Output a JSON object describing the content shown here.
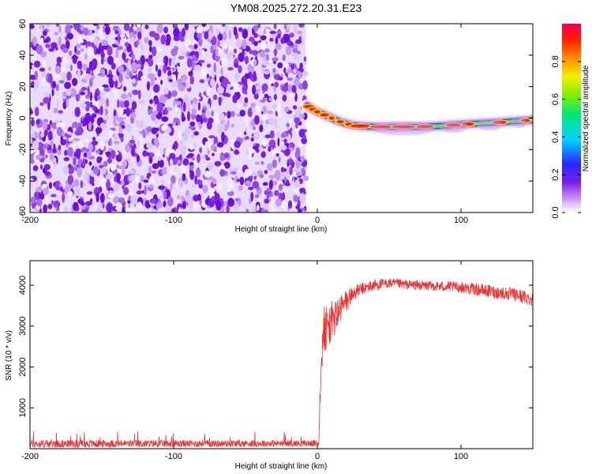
{
  "title": "YM08.2025.272.20.31.E23",
  "chart_data": [
    {
      "type": "heatmap",
      "xlabel": "Height of straight line (km)",
      "ylabel": "Frequency (Hz)",
      "xlim": [
        -200,
        150
      ],
      "ylim": [
        -60,
        60
      ],
      "x_ticks": [
        "-200",
        "-100",
        "0",
        "100"
      ],
      "y_ticks": [
        "60",
        "40",
        "20",
        "0",
        "-20",
        "-40",
        "-60"
      ],
      "ridge": {
        "x": [
          -7,
          -4,
          0,
          5,
          10,
          15,
          20,
          25,
          30,
          40,
          50,
          60,
          70,
          80,
          90,
          100,
          110,
          120,
          130,
          140,
          150
        ],
        "freq": [
          8,
          6,
          4,
          2,
          0,
          -2,
          -3.5,
          -4.5,
          -5,
          -5.5,
          -5.5,
          -5.5,
          -5.5,
          -5.2,
          -4.8,
          -4,
          -3.5,
          -3,
          -2.5,
          -1.8,
          -1.2
        ]
      },
      "noise_region": [
        -200,
        -8
      ],
      "colorbar": {
        "label": "Normalized spectral amplitude",
        "range": [
          0,
          1
        ],
        "ticks": [
          "0.0",
          "0.2",
          "0.4",
          "0.6",
          "0.8"
        ]
      }
    },
    {
      "type": "line",
      "xlabel": "Height of straight line (km)",
      "ylabel": "SNR (10 * v/v)",
      "xlim": [
        -200,
        150
      ],
      "ylim": [
        0,
        4600
      ],
      "x_ticks": [
        "-200",
        "-100",
        "0",
        "100"
      ],
      "y_ticks": [
        "4000",
        "3000",
        "2000",
        "1000"
      ],
      "series": [
        {
          "color": "#ee3333",
          "envelope_x": [
            -200,
            1,
            2,
            3,
            5,
            10,
            15,
            20,
            25,
            30,
            40,
            50,
            60,
            70,
            80,
            100,
            120,
            140,
            150
          ],
          "envelope_y": [
            120,
            130,
            1500,
            2600,
            2900,
            3100,
            3350,
            3600,
            3800,
            3900,
            4000,
            4050,
            4020,
            4000,
            3980,
            3950,
            3850,
            3750,
            3650
          ],
          "noise_amplitude": [
            100,
            80,
            500,
            700,
            650,
            500,
            400,
            300,
            200,
            150,
            150,
            120,
            120,
            120,
            120,
            140,
            160,
            170,
            180
          ]
        }
      ]
    }
  ]
}
